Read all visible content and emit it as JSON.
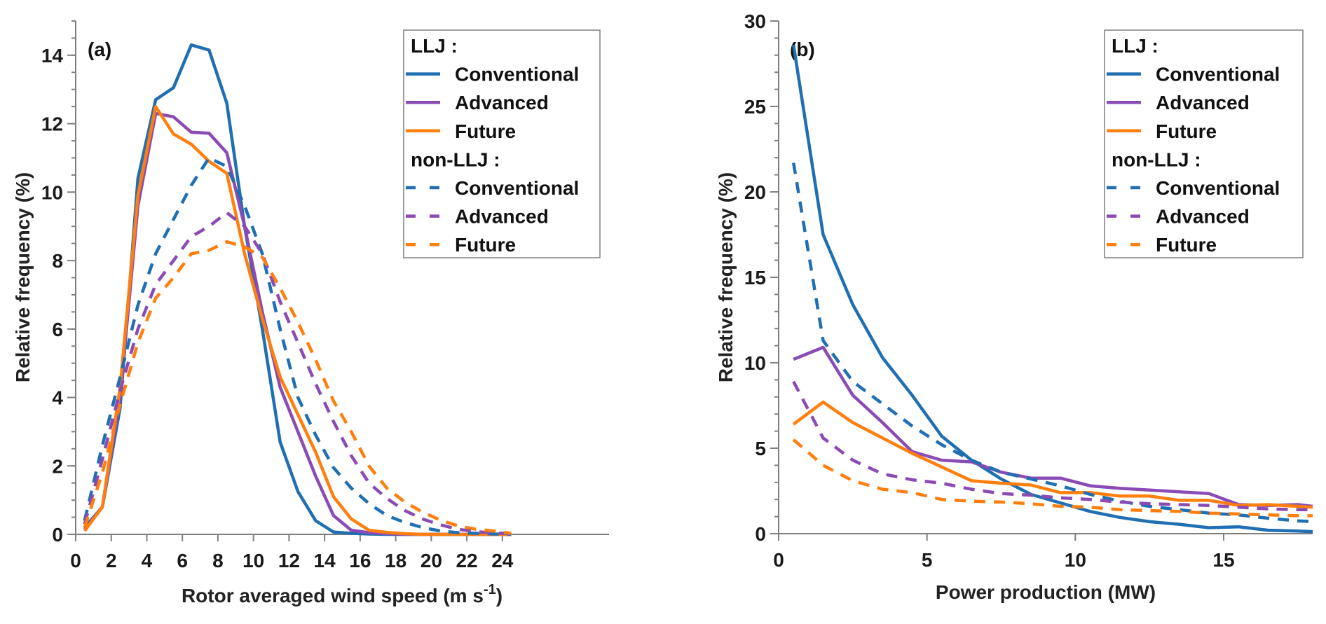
{
  "chart_data": [
    {
      "type": "line",
      "panel_label": "(a)",
      "title": "",
      "xlabel": "Rotor averaged wind speed (m s",
      "xlabel_superscript": "-1",
      "xlabel_suffix": ")",
      "ylabel": "Relative frequency (%)",
      "xlim": [
        0,
        30
      ],
      "ylim": [
        0,
        15
      ],
      "xticks": [
        0,
        2,
        4,
        6,
        8,
        10,
        12,
        14,
        16,
        18,
        20,
        22,
        24
      ],
      "xtick_labels": [
        "0",
        "2",
        "4",
        "6",
        "8",
        "10",
        "12",
        "14",
        "16",
        "18",
        "20",
        "22",
        "24"
      ],
      "yticks": [
        0,
        2,
        4,
        6,
        8,
        10,
        12,
        14
      ],
      "ytick_labels": [
        "0",
        "2",
        "4",
        "6",
        "8",
        "10",
        "12",
        "14"
      ],
      "y_minor_step": 0.5,
      "grid": false,
      "legend_position": "top-right",
      "x": [
        0.5,
        1.5,
        2.5,
        3.5,
        4.5,
        5.5,
        6.5,
        7.5,
        8.5,
        9.5,
        10.5,
        11.5,
        12.5,
        13.5,
        14.5,
        15.5,
        16.5,
        17.5,
        18.5,
        19.5,
        20.5,
        21.5,
        22.5,
        23.5,
        24.5
      ],
      "series": [
        {
          "name": "LLJ Conventional",
          "group": "LLJ",
          "style": "solid",
          "color": "#1f6fb2",
          "values": [
            0.2,
            0.8,
            3.7,
            10.4,
            12.7,
            13.05,
            14.3,
            14.15,
            12.6,
            9.0,
            6.0,
            2.7,
            1.25,
            0.4,
            0.07,
            0.03,
            0.01,
            0,
            0,
            0,
            0,
            0,
            0,
            0,
            0
          ]
        },
        {
          "name": "LLJ Advanced",
          "group": "LLJ",
          "style": "solid",
          "color": "#8b4bb5",
          "values": [
            0.15,
            0.8,
            4.0,
            9.6,
            12.3,
            12.2,
            11.75,
            11.72,
            11.15,
            9.0,
            6.5,
            4.3,
            3.0,
            1.7,
            0.55,
            0.12,
            0.05,
            0.02,
            0,
            0,
            0,
            0,
            0,
            0,
            0
          ]
        },
        {
          "name": "LLJ Future",
          "group": "LLJ",
          "style": "solid",
          "color": "#ff7f0e",
          "values": [
            0.1,
            0.8,
            4.3,
            9.9,
            12.5,
            11.7,
            11.4,
            10.9,
            10.55,
            8.2,
            6.3,
            4.6,
            3.5,
            2.4,
            1.1,
            0.45,
            0.12,
            0.06,
            0.02,
            0,
            0,
            0,
            0,
            0,
            0
          ]
        },
        {
          "name": "non-LLJ Conventional",
          "group": "non-LLJ",
          "style": "dashed",
          "color": "#1f6fb2",
          "values": [
            0.4,
            2.6,
            4.6,
            6.7,
            8.2,
            9.2,
            10.2,
            11.0,
            10.75,
            9.6,
            8.2,
            6.0,
            4.0,
            2.9,
            1.95,
            1.35,
            0.9,
            0.55,
            0.35,
            0.2,
            0.1,
            0.05,
            0.03,
            0.01,
            0
          ]
        },
        {
          "name": "non-LLJ Advanced",
          "group": "non-LLJ",
          "style": "dashed",
          "color": "#8b4bb5",
          "values": [
            0.3,
            2.2,
            4.2,
            6.0,
            7.3,
            8.0,
            8.7,
            9.0,
            9.4,
            9.0,
            8.2,
            6.8,
            5.6,
            4.4,
            3.3,
            2.3,
            1.5,
            1.05,
            0.7,
            0.45,
            0.28,
            0.15,
            0.08,
            0.04,
            0.02
          ]
        },
        {
          "name": "non-LLJ Future",
          "group": "non-LLJ",
          "style": "dashed",
          "color": "#ff7f0e",
          "values": [
            0.2,
            1.8,
            3.8,
            5.6,
            6.9,
            7.5,
            8.2,
            8.3,
            8.55,
            8.4,
            8.1,
            7.2,
            6.2,
            5.1,
            3.9,
            3.0,
            2.0,
            1.35,
            0.95,
            0.65,
            0.42,
            0.25,
            0.15,
            0.1,
            0.03
          ]
        }
      ],
      "legend": {
        "groups": [
          {
            "title": "LLJ :",
            "entries": [
              {
                "label": "Conventional",
                "color": "#1f6fb2",
                "style": "solid"
              },
              {
                "label": "Advanced",
                "color": "#8b4bb5",
                "style": "solid"
              },
              {
                "label": "Future",
                "color": "#ff7f0e",
                "style": "solid"
              }
            ]
          },
          {
            "title": "non-LLJ :",
            "entries": [
              {
                "label": "Conventional",
                "color": "#1f6fb2",
                "style": "dashed"
              },
              {
                "label": "Advanced",
                "color": "#8b4bb5",
                "style": "dashed"
              },
              {
                "label": "Future",
                "color": "#ff7f0e",
                "style": "dashed"
              }
            ]
          }
        ]
      }
    },
    {
      "type": "line",
      "panel_label": "(b)",
      "title": "",
      "xlabel": "Power production (MW)",
      "xlabel_superscript": "",
      "xlabel_suffix": "",
      "ylabel": "Relative frequency (%)",
      "xlim": [
        0,
        18
      ],
      "ylim": [
        0,
        30
      ],
      "xticks": [
        0,
        5,
        10,
        15
      ],
      "xtick_labels": [
        "0",
        "5",
        "10",
        "15"
      ],
      "yticks": [
        0,
        5,
        10,
        15,
        20,
        25,
        30
      ],
      "ytick_labels": [
        "0",
        "5",
        "10",
        "15",
        "20",
        "25",
        "30"
      ],
      "y_minor_step": 1,
      "grid": false,
      "legend_position": "top-right",
      "x": [
        0.5,
        1.5,
        2.5,
        3.5,
        4.5,
        5.5,
        6.5,
        7.5,
        8.5,
        9.5,
        10.5,
        11.5,
        12.5,
        13.5,
        14.5,
        15.5,
        16.5,
        17.5,
        18
      ],
      "series": [
        {
          "name": "LLJ Conventional",
          "group": "LLJ",
          "style": "solid",
          "color": "#1f6fb2",
          "values": [
            28.6,
            17.5,
            13.4,
            10.3,
            8.1,
            5.7,
            4.3,
            3.2,
            2.3,
            1.8,
            1.3,
            0.95,
            0.7,
            0.55,
            0.35,
            0.4,
            0.2,
            0.15,
            0.12
          ]
        },
        {
          "name": "LLJ Advanced",
          "group": "LLJ",
          "style": "solid",
          "color": "#8b4bb5",
          "values": [
            10.2,
            10.9,
            8.1,
            6.5,
            4.8,
            4.3,
            4.2,
            3.6,
            3.25,
            3.25,
            2.8,
            2.65,
            2.55,
            2.45,
            2.35,
            1.7,
            1.65,
            1.7,
            1.6
          ]
        },
        {
          "name": "LLJ Future",
          "group": "LLJ",
          "style": "solid",
          "color": "#ff7f0e",
          "values": [
            6.4,
            7.7,
            6.5,
            5.6,
            4.7,
            3.9,
            3.1,
            2.95,
            2.85,
            2.4,
            2.4,
            2.2,
            2.2,
            1.95,
            1.95,
            1.65,
            1.7,
            1.6,
            1.55
          ]
        },
        {
          "name": "non-LLJ Conventional",
          "group": "non-LLJ",
          "style": "dashed",
          "color": "#1f6fb2",
          "values": [
            21.7,
            11.3,
            8.9,
            7.6,
            6.3,
            5.2,
            4.3,
            3.6,
            3.2,
            2.8,
            2.3,
            1.9,
            1.6,
            1.4,
            1.2,
            1.1,
            0.9,
            0.75,
            0.7
          ]
        },
        {
          "name": "non-LLJ Advanced",
          "group": "non-LLJ",
          "style": "dashed",
          "color": "#8b4bb5",
          "values": [
            8.9,
            5.6,
            4.3,
            3.5,
            3.15,
            2.95,
            2.6,
            2.35,
            2.25,
            2.1,
            2.0,
            1.85,
            1.75,
            1.7,
            1.65,
            1.55,
            1.45,
            1.4,
            1.4
          ]
        },
        {
          "name": "non-LLJ Future",
          "group": "non-LLJ",
          "style": "dashed",
          "color": "#ff7f0e",
          "values": [
            5.5,
            4.0,
            3.1,
            2.6,
            2.4,
            2.0,
            1.9,
            1.85,
            1.75,
            1.6,
            1.55,
            1.4,
            1.35,
            1.3,
            1.2,
            1.15,
            1.1,
            1.05,
            1.05
          ]
        }
      ],
      "legend": {
        "groups": [
          {
            "title": "LLJ :",
            "entries": [
              {
                "label": "Conventional",
                "color": "#1f6fb2",
                "style": "solid"
              },
              {
                "label": "Advanced",
                "color": "#8b4bb5",
                "style": "solid"
              },
              {
                "label": "Future",
                "color": "#ff7f0e",
                "style": "solid"
              }
            ]
          },
          {
            "title": "non-LLJ :",
            "entries": [
              {
                "label": "Conventional",
                "color": "#1f6fb2",
                "style": "dashed"
              },
              {
                "label": "Advanced",
                "color": "#8b4bb5",
                "style": "dashed"
              },
              {
                "label": "Future",
                "color": "#ff7f0e",
                "style": "dashed"
              }
            ]
          }
        ]
      }
    }
  ]
}
